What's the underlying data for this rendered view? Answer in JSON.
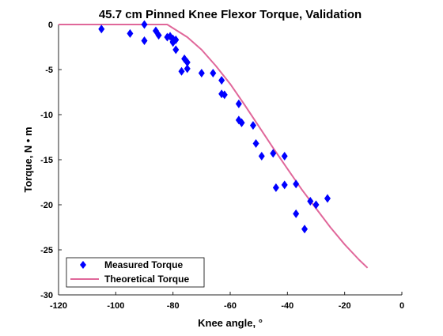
{
  "chart_data": {
    "type": "scatter",
    "title": "45.7 cm Pinned Knee Flexor Torque, Validation",
    "xlabel": "Knee angle, °",
    "ylabel": "Torque, N • m",
    "xlim": [
      -120,
      0
    ],
    "ylim": [
      -30,
      0
    ],
    "xticks": [
      -120,
      -100,
      -80,
      -60,
      -40,
      -20,
      0
    ],
    "yticks": [
      -30,
      -25,
      -20,
      -15,
      -10,
      -5,
      0
    ],
    "grid": false,
    "legend_position": "bottom-left",
    "series": [
      {
        "name": "Measured Torque",
        "kind": "markers",
        "marker": "diamond",
        "color": "#0000ff",
        "x": [
          -105,
          -95,
          -90,
          -90,
          -86,
          -85,
          -82,
          -81,
          -80,
          -80,
          -79,
          -79,
          -80,
          -76,
          -75,
          -77,
          -75,
          -70,
          -66,
          -63,
          -63,
          -62,
          -57,
          -57,
          -56,
          -56,
          -52,
          -51,
          -49,
          -45,
          -44,
          -41,
          -41,
          -37,
          -37,
          -34,
          -32,
          -30,
          -26
        ],
        "y": [
          -0.5,
          -1.0,
          -1.8,
          0.0,
          -0.7,
          -1.2,
          -1.4,
          -1.3,
          -2.0,
          -1.6,
          -1.7,
          -2.8,
          -1.9,
          -3.8,
          -4.2,
          -5.2,
          -4.9,
          -5.4,
          -5.4,
          -6.2,
          -7.7,
          -7.8,
          -8.8,
          -10.6,
          -10.9,
          -10.9,
          -11.2,
          -13.2,
          -14.6,
          -14.3,
          -18.1,
          -14.6,
          -17.8,
          -17.7,
          -21.0,
          -22.7,
          -19.6,
          -20.0,
          -19.3
        ]
      },
      {
        "name": "Theoretical Torque",
        "kind": "line",
        "color": "#e0679a",
        "x": [
          -120,
          -100,
          -82,
          -75,
          -70,
          -65,
          -60,
          -55,
          -50,
          -45,
          -40,
          -35,
          -30,
          -25,
          -20,
          -15,
          -12
        ],
        "y": [
          0,
          0,
          0,
          -1.4,
          -2.8,
          -4.6,
          -6.6,
          -8.9,
          -11.3,
          -13.7,
          -16.0,
          -18.3,
          -20.4,
          -22.5,
          -24.4,
          -26.1,
          -27.0
        ]
      }
    ]
  }
}
